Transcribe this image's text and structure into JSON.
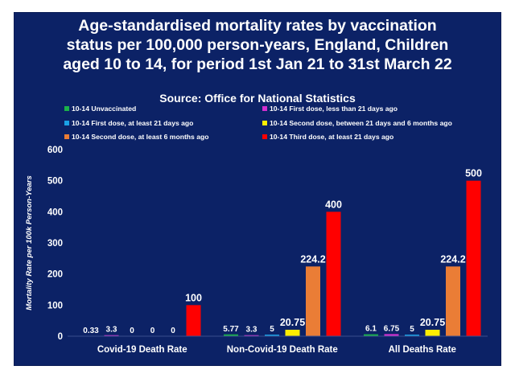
{
  "chart_data": {
    "type": "bar",
    "title": "Age-standardised mortality rates by vaccination status per 100,000 person-years, England, Children aged 10 to 14, for period 1st Jan 21 to 31st March 22",
    "title_lines": [
      "Age-standardised mortality rates by vaccination",
      "status per 100,000 person-years, England, Children",
      "aged 10 to 14, for period 1st Jan 21 to 31st March 22"
    ],
    "subtitle": "Source: Office for National Statistics",
    "ylabel": "Mortality Rate per 100k Person-Years",
    "xlabel": "",
    "ylim": [
      0,
      600
    ],
    "yticks": [
      0,
      100,
      200,
      300,
      400,
      500,
      600
    ],
    "grid": false,
    "legend_position": "top",
    "categories": [
      "Covid-19 Death Rate",
      "Non-Covid-19 Death Rate",
      "All Deaths Rate"
    ],
    "series": [
      {
        "name": "10-14 Unvaccinated",
        "color": "#1bb24a",
        "values": [
          0.33,
          5.77,
          6.1
        ],
        "labels": [
          "0.33",
          "5.77",
          "6.1"
        ]
      },
      {
        "name": "10-14 First dose, less than 21 days ago",
        "color": "#d42fd0",
        "values": [
          3.3,
          3.3,
          6.75
        ],
        "labels": [
          "3.3",
          "3.3",
          "6.75"
        ]
      },
      {
        "name": "10-14 First dose, at least 21 days ago",
        "color": "#1aa2e6",
        "values": [
          0,
          5,
          5
        ],
        "labels": [
          "0",
          "5",
          "5"
        ]
      },
      {
        "name": "10-14 Second dose, between 21 days and 6 months ago",
        "color": "#ffee00",
        "values": [
          0,
          20.75,
          20.75
        ],
        "labels": [
          "0",
          "20.75",
          "20.75"
        ]
      },
      {
        "name": "10-14 Second dose, at least 6 months ago",
        "color": "#ea7d36",
        "values": [
          0,
          224.2,
          224.2
        ],
        "labels": [
          "0",
          "224.2",
          "224.2"
        ]
      },
      {
        "name": "10-14 Third dose, at least 21 days ago",
        "color": "#ff0000",
        "values": [
          100,
          400,
          500
        ],
        "labels": [
          "100",
          "400",
          "500"
        ]
      }
    ]
  }
}
